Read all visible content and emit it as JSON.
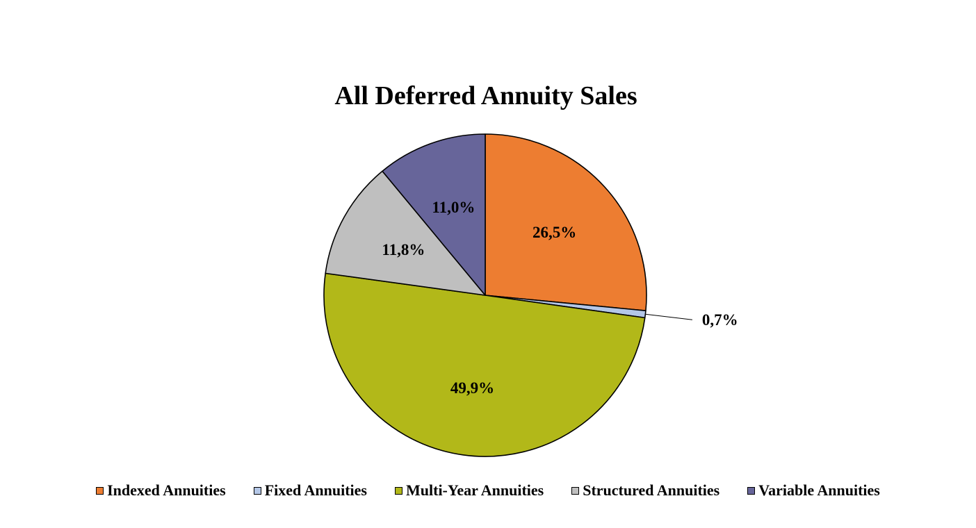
{
  "chart_data": {
    "type": "pie",
    "title": "All Deferred Annuity Sales",
    "labels": [
      "Indexed Annuities",
      "Fixed Annuities",
      "Multi-Year Annuities",
      "Structured Annuities",
      "Variable Annuities"
    ],
    "values": [
      26.5,
      0.7,
      49.9,
      11.8,
      11.0
    ],
    "value_labels": [
      "26,5%",
      "0,7%",
      "49,9%",
      "11,8%",
      "11,0%"
    ],
    "colors": [
      "#ED7D31",
      "#B4C7E7",
      "#B2B819",
      "#BFBFBF",
      "#67659A"
    ],
    "start_angle": "12 o'clock",
    "direction": "clockwise",
    "legend_position": "bottom"
  }
}
